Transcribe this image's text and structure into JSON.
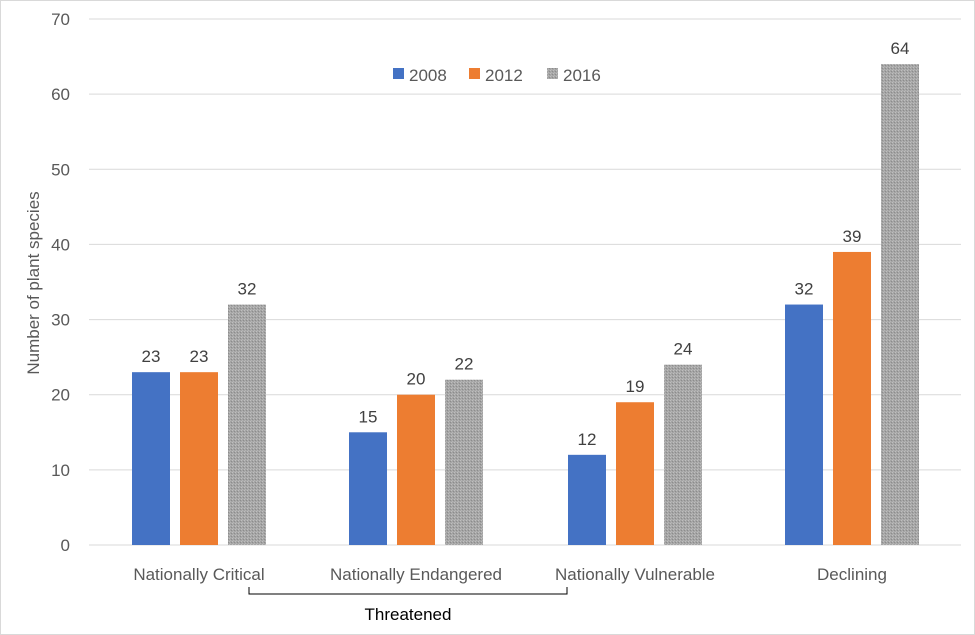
{
  "chart_data": {
    "type": "bar",
    "categories": [
      "Nationally Critical",
      "Nationally Endangered",
      "Nationally Vulnerable",
      "Declining"
    ],
    "series": [
      {
        "name": "2008",
        "values": [
          23,
          15,
          12,
          32
        ],
        "color": "#4472C4"
      },
      {
        "name": "2012",
        "values": [
          23,
          20,
          19,
          39
        ],
        "color": "#ED7D31"
      },
      {
        "name": "2016",
        "values": [
          32,
          22,
          24,
          64
        ],
        "color": "#A5A5A5"
      }
    ],
    "ylabel": "Number of plant species",
    "ylim": [
      0,
      70
    ],
    "yticks": [
      0,
      10,
      20,
      30,
      40,
      50,
      60,
      70
    ],
    "grid": true,
    "legend": "top-center",
    "bracket_label": "Threatened",
    "bracket_categories": [
      "Nationally Critical",
      "Nationally Endangered",
      "Nationally Vulnerable"
    ],
    "gridline_color": "#d9d9d9",
    "pattern_series": "2016"
  }
}
